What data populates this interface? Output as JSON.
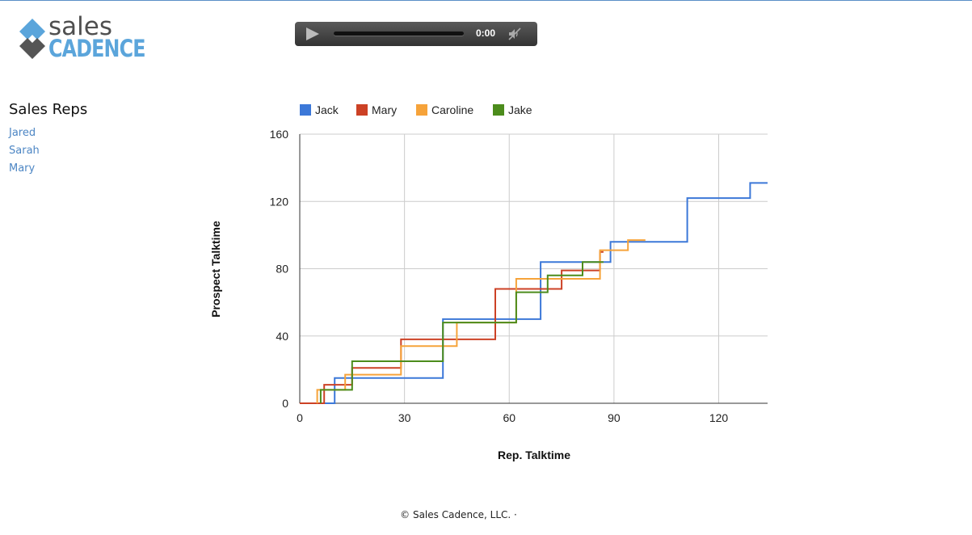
{
  "logo": {
    "word1": "sales",
    "word2": "CADENCE"
  },
  "player": {
    "time": "0:00"
  },
  "sidebar": {
    "title": "Sales Reps",
    "reps": [
      "Jared",
      "Sarah",
      "Mary"
    ]
  },
  "footer": {
    "text": "© Sales Cadence, LLC. ·"
  },
  "colors": {
    "accent": "#4d86c4"
  },
  "chart_data": {
    "type": "line",
    "step": true,
    "xlabel": "Rep. Talktime",
    "ylabel": "Prospect Talktime",
    "xlim": [
      0,
      134
    ],
    "ylim": [
      0,
      160
    ],
    "xticks": [
      0,
      30,
      60,
      90,
      120
    ],
    "yticks": [
      0,
      40,
      80,
      120,
      160
    ],
    "grid": true,
    "legend": "top",
    "series": [
      {
        "name": "Jack",
        "color": "#3c78d8",
        "points": [
          [
            0,
            0
          ],
          [
            10,
            0
          ],
          [
            10,
            15
          ],
          [
            41,
            15
          ],
          [
            41,
            50
          ],
          [
            69,
            50
          ],
          [
            69,
            84
          ],
          [
            89,
            84
          ],
          [
            89,
            96
          ],
          [
            111,
            96
          ],
          [
            111,
            122
          ],
          [
            129,
            122
          ],
          [
            129,
            131
          ],
          [
            134,
            131
          ]
        ]
      },
      {
        "name": "Mary",
        "color": "#cc4125",
        "points": [
          [
            0,
            0
          ],
          [
            7,
            0
          ],
          [
            7,
            11
          ],
          [
            15,
            11
          ],
          [
            15,
            21
          ],
          [
            29,
            21
          ],
          [
            29,
            38
          ],
          [
            56,
            38
          ],
          [
            56,
            68
          ],
          [
            75,
            68
          ],
          [
            75,
            79
          ],
          [
            86,
            79
          ],
          [
            86,
            90
          ],
          [
            87,
            90
          ]
        ]
      },
      {
        "name": "Caroline",
        "color": "#f6a33a",
        "points": [
          [
            5,
            0
          ],
          [
            5,
            8
          ],
          [
            13,
            8
          ],
          [
            13,
            17
          ],
          [
            29,
            17
          ],
          [
            29,
            34
          ],
          [
            45,
            34
          ],
          [
            45,
            48
          ],
          [
            62,
            48
          ],
          [
            62,
            74
          ],
          [
            86,
            74
          ],
          [
            86,
            91
          ],
          [
            94,
            91
          ],
          [
            94,
            97
          ],
          [
            99,
            97
          ]
        ]
      },
      {
        "name": "Jake",
        "color": "#4c8c1c",
        "points": [
          [
            6,
            0
          ],
          [
            6,
            8
          ],
          [
            15,
            8
          ],
          [
            15,
            25
          ],
          [
            41,
            25
          ],
          [
            41,
            48
          ],
          [
            62,
            48
          ],
          [
            62,
            66
          ],
          [
            71,
            66
          ],
          [
            71,
            76
          ],
          [
            81,
            76
          ],
          [
            81,
            84
          ],
          [
            87,
            84
          ]
        ]
      }
    ]
  }
}
